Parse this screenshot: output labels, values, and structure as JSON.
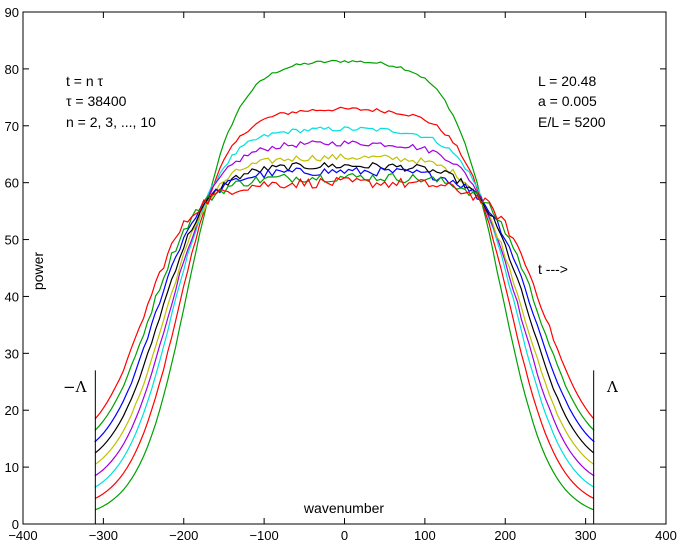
{
  "chart_data": {
    "type": "line",
    "title": "",
    "xlabel": "wavenumber",
    "ylabel": "power",
    "xlim": [
      -400,
      400
    ],
    "ylim": [
      0,
      90
    ],
    "xticks": [
      -400,
      -300,
      -200,
      -100,
      0,
      100,
      200,
      300,
      400
    ],
    "yticks": [
      0,
      10,
      20,
      30,
      40,
      50,
      60,
      70,
      80,
      90
    ],
    "xtick_labels": [
      "−400",
      "−300",
      "−200",
      "−100",
      "0",
      "100",
      "200",
      "300",
      "400"
    ],
    "ytick_labels": [
      "0",
      "10",
      "20",
      "30",
      "40",
      "50",
      "60",
      "70",
      "80",
      "90"
    ],
    "grid": false,
    "annotations_left": [
      "t = n τ",
      "τ = 38400",
      "n = 2, 3, ..., 10"
    ],
    "annotations_right": [
      "L = 20.48",
      "a = 0.005",
      "E/L = 5200"
    ],
    "arrow_label": "t --->",
    "cutoff_left_label": "−Λ",
    "cutoff_right_label": "Λ",
    "cutoff": 310,
    "series": [
      {
        "color": "#00a000",
        "plateau": 81.5,
        "edge": 2.5,
        "half": 195
      },
      {
        "color": "#ff0000",
        "plateau": 73.0,
        "edge": 4.5,
        "half": 207
      },
      {
        "color": "#00e0e0",
        "plateau": 69.5,
        "edge": 6.5,
        "half": 215
      },
      {
        "color": "#a000e0",
        "plateau": 67.0,
        "edge": 8.5,
        "half": 220
      },
      {
        "color": "#c0c000",
        "plateau": 64.5,
        "edge": 10.5,
        "half": 225
      },
      {
        "color": "#000000",
        "plateau": 63.0,
        "edge": 12.5,
        "half": 231
      },
      {
        "color": "#0000ff",
        "plateau": 62.0,
        "edge": 14.5,
        "half": 237
      },
      {
        "color": "#00a000",
        "plateau": 61.0,
        "edge": 16.5,
        "half": 243
      },
      {
        "color": "#ff0000",
        "plateau": 60.0,
        "edge": 18.5,
        "half": 250
      }
    ]
  }
}
